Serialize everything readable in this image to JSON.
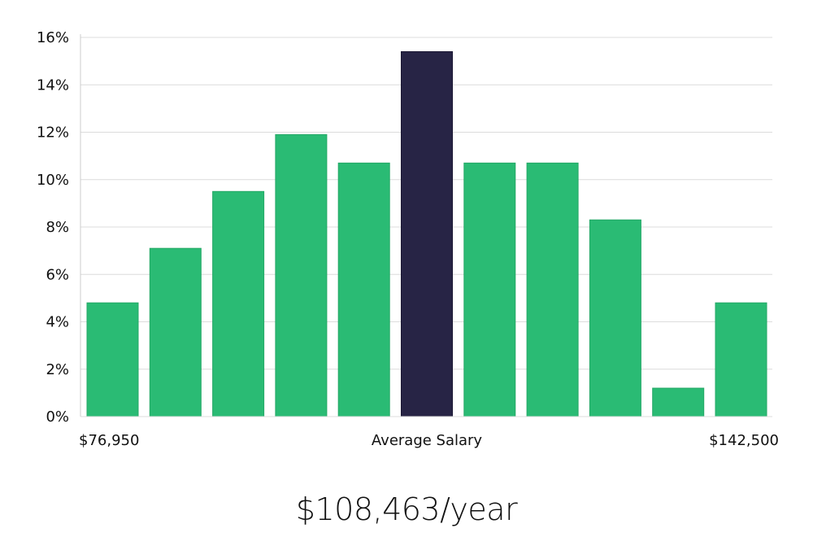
{
  "chart_data": {
    "type": "bar",
    "title": "",
    "xlabel": "Average Salary",
    "ylabel": "",
    "ylim": [
      0,
      16
    ],
    "yticks": [
      0,
      2,
      4,
      6,
      8,
      10,
      12,
      14,
      16
    ],
    "ytick_suffix": "%",
    "grid": true,
    "x_min_label": "$76,950",
    "x_max_label": "$142,500",
    "values": [
      4.8,
      7.1,
      9.5,
      11.9,
      10.7,
      15.4,
      10.7,
      10.7,
      8.3,
      1.2,
      4.8
    ],
    "highlight_index": 5,
    "colors": {
      "bar": "#2abb74",
      "highlight": "#272445",
      "grid": "#dcdcdc",
      "axis": "#cccccc"
    }
  },
  "summary": {
    "salary_text": "$108,463/year"
  }
}
